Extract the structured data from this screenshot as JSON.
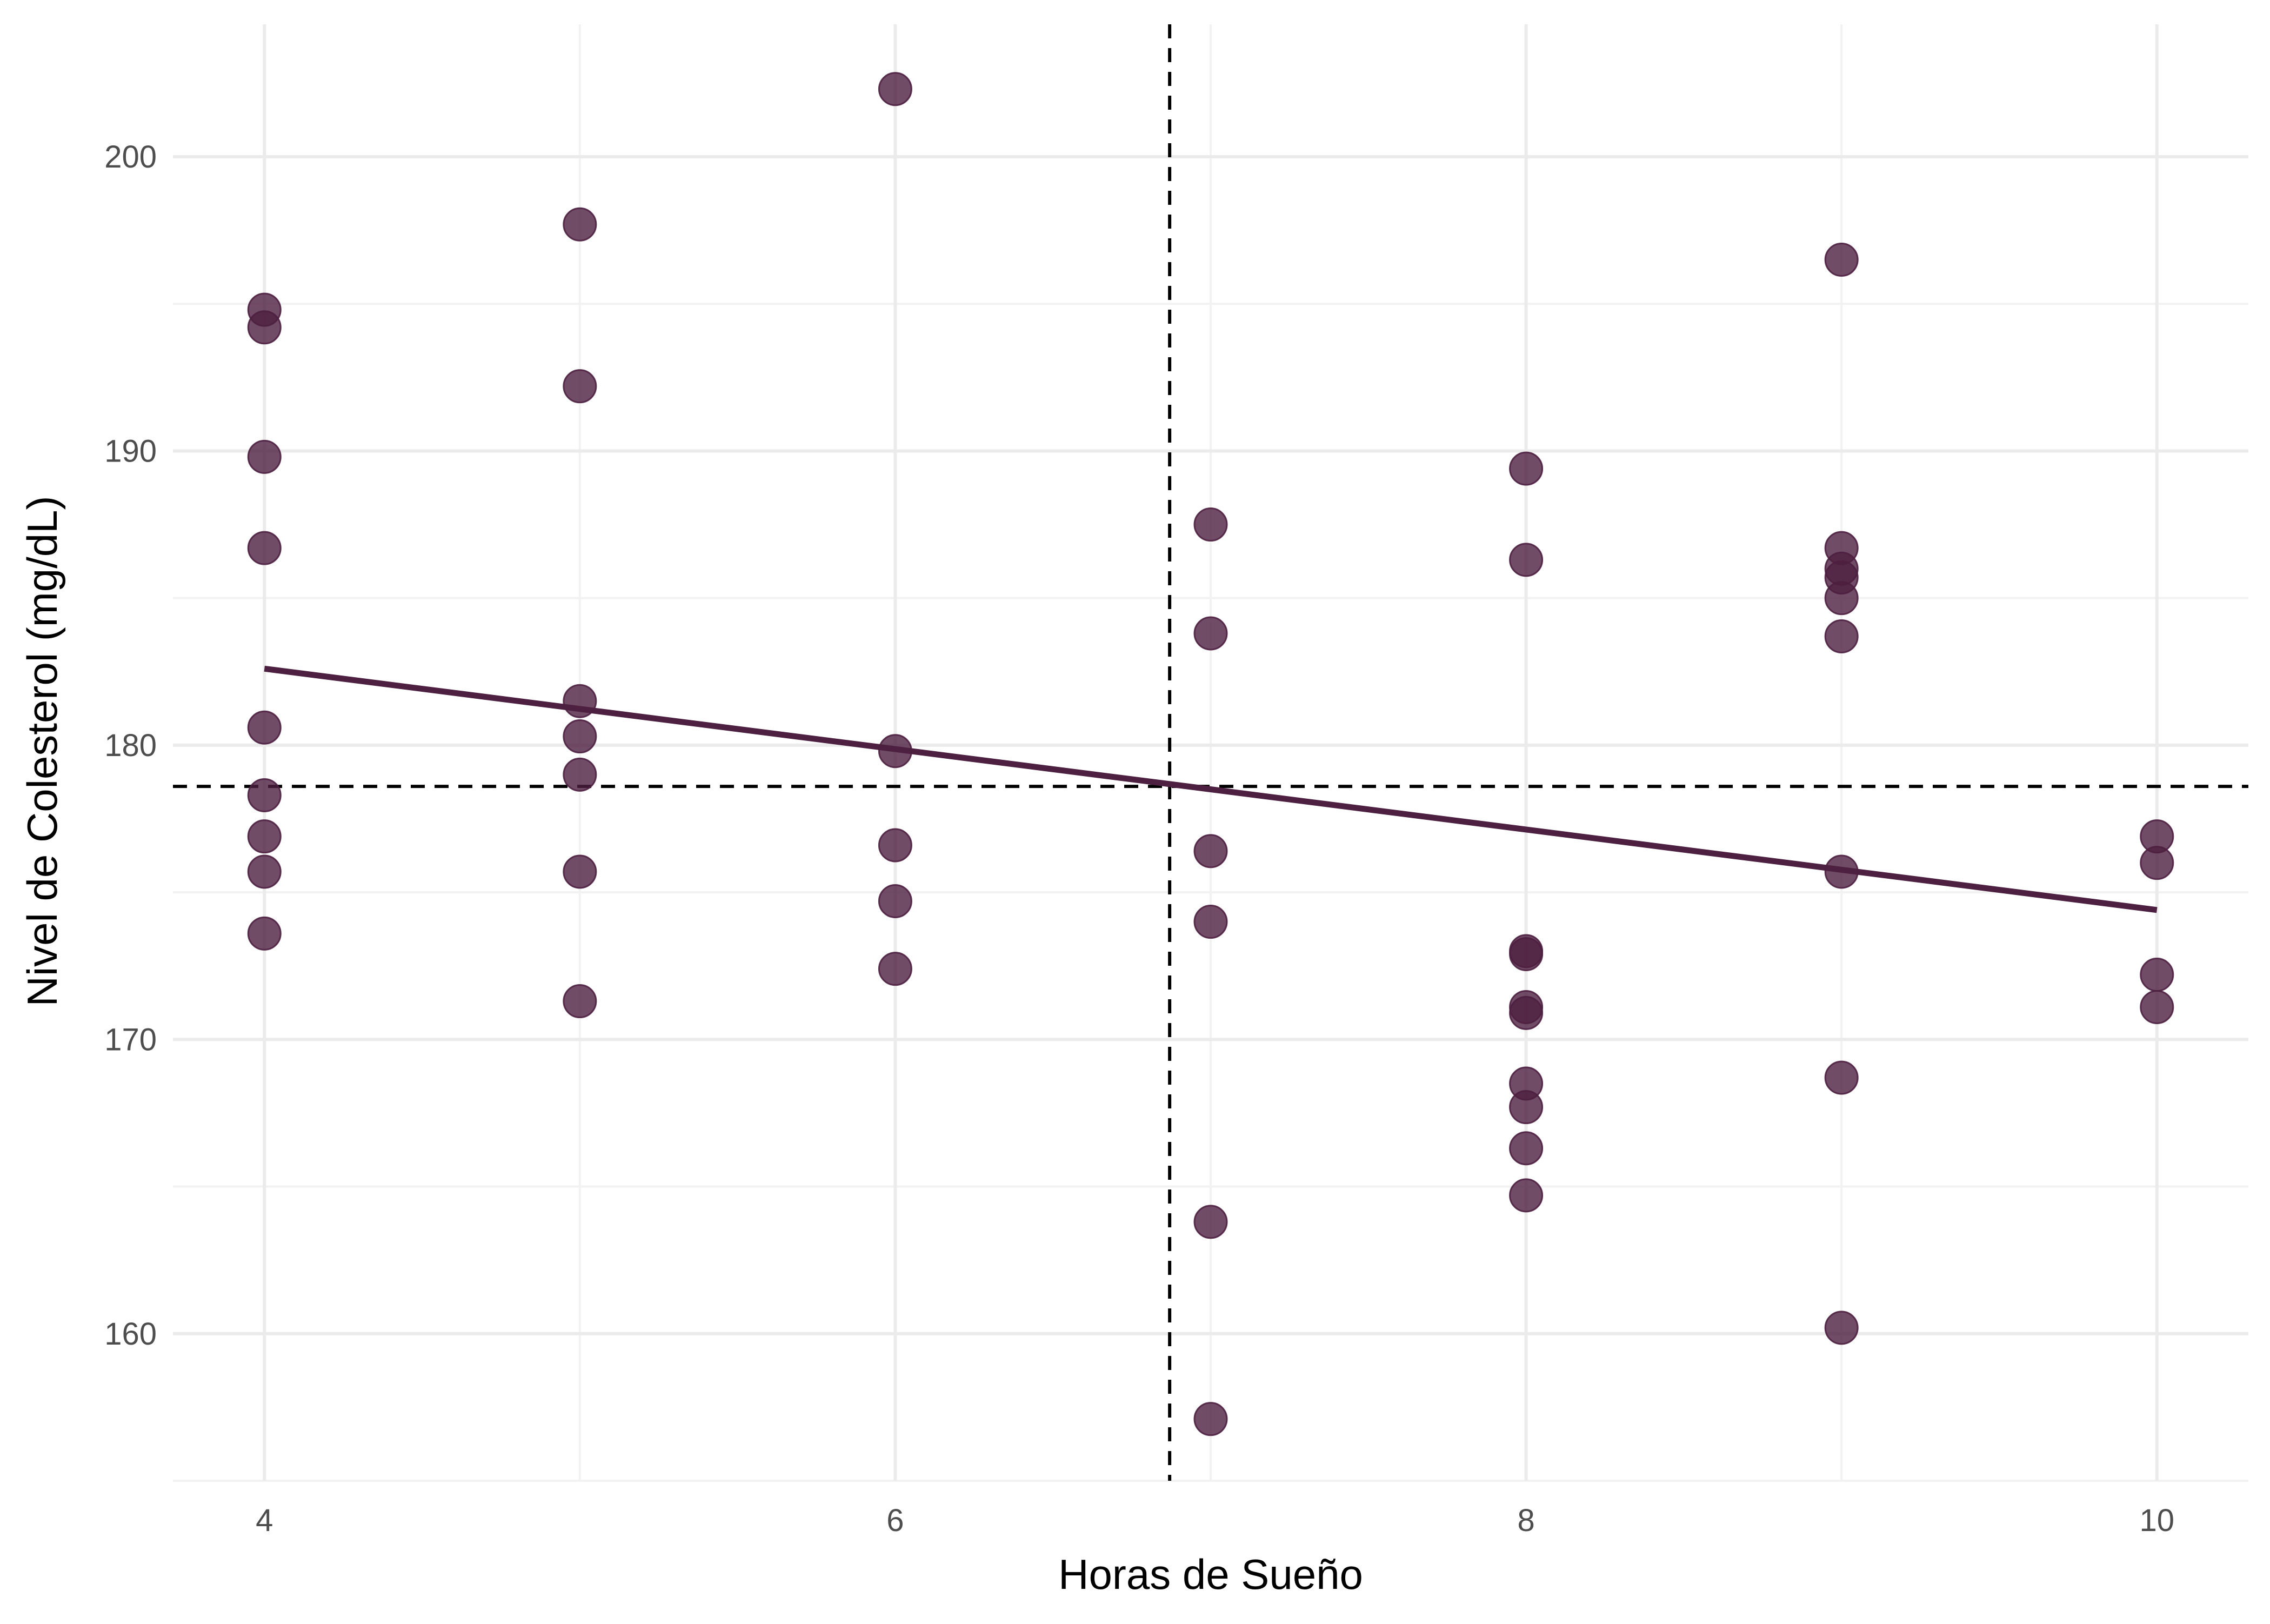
{
  "chart_data": {
    "type": "scatter",
    "xlabel": "Horas de Sueño",
    "ylabel": "Nivel de Colesterol (mg/dL)",
    "xlim": [
      3.71,
      10.29
    ],
    "ylim": [
      155.0,
      204.5
    ],
    "x_ticks": [
      4,
      6,
      8,
      10
    ],
    "y_ticks": [
      160,
      170,
      180,
      190,
      200
    ],
    "x_minor_ticks": [
      5,
      7,
      9
    ],
    "y_minor_ticks": [
      155,
      165,
      175,
      185,
      195
    ],
    "grid": true,
    "legend": "none",
    "point_color": "#4d1f40",
    "point_opacity": 0.8,
    "line_color": "#4d1f40",
    "reference_color": "#000000",
    "points": [
      {
        "x": 4,
        "y": 194.8
      },
      {
        "x": 4,
        "y": 194.2
      },
      {
        "x": 4,
        "y": 189.8
      },
      {
        "x": 4,
        "y": 186.7
      },
      {
        "x": 4,
        "y": 180.6
      },
      {
        "x": 4,
        "y": 178.3
      },
      {
        "x": 4,
        "y": 176.9
      },
      {
        "x": 4,
        "y": 175.7
      },
      {
        "x": 4,
        "y": 173.6
      },
      {
        "x": 5,
        "y": 197.7
      },
      {
        "x": 5,
        "y": 192.2
      },
      {
        "x": 5,
        "y": 181.5
      },
      {
        "x": 5,
        "y": 180.3
      },
      {
        "x": 5,
        "y": 179.0
      },
      {
        "x": 5,
        "y": 175.7
      },
      {
        "x": 5,
        "y": 171.3
      },
      {
        "x": 6,
        "y": 202.3
      },
      {
        "x": 6,
        "y": 179.8
      },
      {
        "x": 6,
        "y": 176.6
      },
      {
        "x": 6,
        "y": 174.7
      },
      {
        "x": 6,
        "y": 172.4
      },
      {
        "x": 7,
        "y": 187.5
      },
      {
        "x": 7,
        "y": 183.8
      },
      {
        "x": 7,
        "y": 176.4
      },
      {
        "x": 7,
        "y": 174.0
      },
      {
        "x": 7,
        "y": 163.8
      },
      {
        "x": 7,
        "y": 157.1
      },
      {
        "x": 8,
        "y": 189.4
      },
      {
        "x": 8,
        "y": 186.3
      },
      {
        "x": 8,
        "y": 173.0
      },
      {
        "x": 8,
        "y": 172.9
      },
      {
        "x": 8,
        "y": 171.1
      },
      {
        "x": 8,
        "y": 170.9
      },
      {
        "x": 8,
        "y": 168.5
      },
      {
        "x": 8,
        "y": 167.7
      },
      {
        "x": 8,
        "y": 166.3
      },
      {
        "x": 8,
        "y": 164.7
      },
      {
        "x": 9,
        "y": 196.5
      },
      {
        "x": 9,
        "y": 186.7
      },
      {
        "x": 9,
        "y": 186.0
      },
      {
        "x": 9,
        "y": 185.7
      },
      {
        "x": 9,
        "y": 185.0
      },
      {
        "x": 9,
        "y": 183.7
      },
      {
        "x": 9,
        "y": 175.7
      },
      {
        "x": 9,
        "y": 168.7
      },
      {
        "x": 9,
        "y": 160.2
      },
      {
        "x": 10,
        "y": 176.9
      },
      {
        "x": 10,
        "y": 176.0
      },
      {
        "x": 10,
        "y": 172.2
      },
      {
        "x": 10,
        "y": 171.1
      }
    ],
    "regression_line": {
      "x": [
        4,
        10
      ],
      "y": [
        182.6,
        174.4
      ]
    },
    "reference_lines": {
      "vertical_x": 6.87,
      "horizontal_y": 178.6
    }
  }
}
